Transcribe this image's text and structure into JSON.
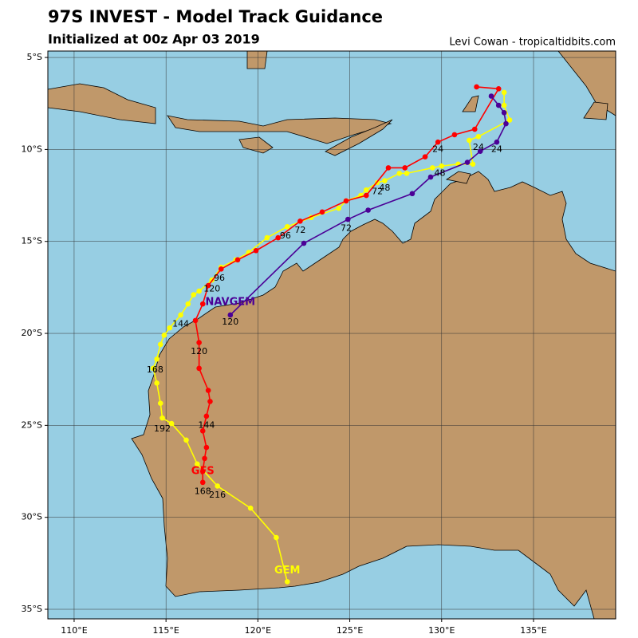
{
  "chart_data": {
    "type": "map",
    "title": "97S INVEST - Model Track Guidance",
    "subtitle": "Initialized at 00z Apr 03 2019",
    "credit": "Levi Cowan - tropicaltidbits.com",
    "xlim": [
      108.57,
      139.47
    ],
    "ylim": [
      -35.52,
      -4.65
    ],
    "xticks": [
      {
        "value": 110,
        "label": "110°E"
      },
      {
        "value": 115,
        "label": "115°E"
      },
      {
        "value": 120,
        "label": "120°E"
      },
      {
        "value": 125,
        "label": "125°E"
      },
      {
        "value": 130,
        "label": "130°E"
      },
      {
        "value": 135,
        "label": "135°E"
      }
    ],
    "yticks": [
      {
        "value": -5,
        "label": "5°S"
      },
      {
        "value": -10,
        "label": "10°S"
      },
      {
        "value": -15,
        "label": "15°S"
      },
      {
        "value": -20,
        "label": "20°S"
      },
      {
        "value": -25,
        "label": "25°S"
      },
      {
        "value": -30,
        "label": "30°S"
      },
      {
        "value": -35,
        "label": "35°S"
      }
    ],
    "grid": true,
    "ocean_color": "#97cee3",
    "tracks": [
      {
        "name": "GEM",
        "color": "#ffff00",
        "lon": [
          133.4,
          133.4,
          133.7,
          132.0,
          131.5,
          131.7,
          130.9,
          130.0,
          129.5,
          128.1,
          127.7,
          126.9,
          126.5,
          125.9,
          125.6,
          124.8,
          124.4,
          122.9,
          121.6,
          120.5,
          119.5,
          118.8,
          118.0,
          117.5,
          116.8,
          116.5,
          116.2,
          115.8,
          115.2,
          114.9,
          114.7,
          114.5,
          114.3,
          114.5,
          114.7,
          114.8,
          115.3,
          116.1,
          116.7,
          117.8,
          119.6,
          121.0,
          121.6
        ],
        "lat": [
          -6.9,
          -7.6,
          -8.4,
          -9.3,
          -9.5,
          -10.8,
          -10.8,
          -10.9,
          -11.0,
          -11.3,
          -11.3,
          -11.7,
          -11.8,
          -12.2,
          -12.5,
          -12.8,
          -13.2,
          -13.7,
          -14.2,
          -14.8,
          -15.6,
          -16.0,
          -16.4,
          -17.1,
          -17.7,
          -17.9,
          -18.4,
          -19.0,
          -19.7,
          -20.1,
          -20.6,
          -21.4,
          -21.9,
          -22.7,
          -23.8,
          -24.6,
          -24.9,
          -25.8,
          -27.1,
          -28.3,
          -29.5,
          -31.1,
          -33.5
        ],
        "label_lon": 121.6,
        "label_lat": -32.9
      },
      {
        "name": "GFS",
        "color": "#ff0000",
        "lon": [
          131.9,
          133.1,
          131.8,
          130.7,
          129.8,
          129.1,
          128.0,
          127.1,
          125.9,
          124.8,
          123.5,
          122.3,
          121.1,
          119.9,
          118.9,
          118.0,
          117.3,
          117.0,
          116.6,
          116.8,
          116.8,
          117.3,
          117.4,
          117.2,
          117.0,
          117.2,
          117.1,
          117.0,
          117.0
        ],
        "lat": [
          -6.6,
          -6.7,
          -8.9,
          -9.2,
          -9.6,
          -10.4,
          -11.0,
          -11.0,
          -12.5,
          -12.8,
          -13.4,
          -13.9,
          -14.8,
          -15.5,
          -16.0,
          -16.5,
          -17.4,
          -18.4,
          -19.3,
          -20.5,
          -21.9,
          -23.1,
          -23.7,
          -24.5,
          -25.3,
          -26.2,
          -26.8,
          -27.5,
          -28.1
        ],
        "label_lon": 117.0,
        "label_lat": -27.5
      },
      {
        "name": "NAVGEM",
        "color": "#4b0096",
        "lon": [
          132.7,
          133.1,
          133.4,
          133.5,
          133.0,
          132.1,
          131.4,
          129.4,
          128.4,
          126.0,
          124.9,
          122.5,
          118.5
        ],
        "lat": [
          -7.1,
          -7.6,
          -8.0,
          -8.6,
          -9.6,
          -10.1,
          -10.7,
          -11.5,
          -12.4,
          -13.3,
          -13.8,
          -15.1,
          -19.0
        ],
        "label_lon": 118.5,
        "label_lat": -18.3
      }
    ],
    "hour_labels": [
      {
        "hour": 24,
        "lon": 129.8,
        "lat": -10.0
      },
      {
        "hour": 24,
        "lon": 132.0,
        "lat": -9.9
      },
      {
        "hour": 24,
        "lon": 133.0,
        "lat": -10.0
      },
      {
        "hour": 48,
        "lon": 126.9,
        "lat": -12.1
      },
      {
        "hour": 48,
        "lon": 129.9,
        "lat": -11.3
      },
      {
        "hour": 72,
        "lon": 126.5,
        "lat": -12.3
      },
      {
        "hour": 72,
        "lon": 122.3,
        "lat": -14.4
      },
      {
        "hour": 72,
        "lon": 124.8,
        "lat": -14.3
      },
      {
        "hour": 96,
        "lon": 121.5,
        "lat": -14.7
      },
      {
        "hour": 96,
        "lon": 117.9,
        "lat": -17.0
      },
      {
        "hour": 120,
        "lon": 117.5,
        "lat": -17.6
      },
      {
        "hour": 120,
        "lon": 118.5,
        "lat": -19.4
      },
      {
        "hour": 120,
        "lon": 116.8,
        "lat": -21.0
      },
      {
        "hour": 144,
        "lon": 115.8,
        "lat": -19.5
      },
      {
        "hour": 144,
        "lon": 117.2,
        "lat": -25.0
      },
      {
        "hour": 168,
        "lon": 114.4,
        "lat": -22.0
      },
      {
        "hour": 168,
        "lon": 117.0,
        "lat": -28.6
      },
      {
        "hour": 192,
        "lon": 114.8,
        "lat": -25.2
      },
      {
        "hour": 216,
        "lon": 117.8,
        "lat": -28.8
      }
    ]
  }
}
